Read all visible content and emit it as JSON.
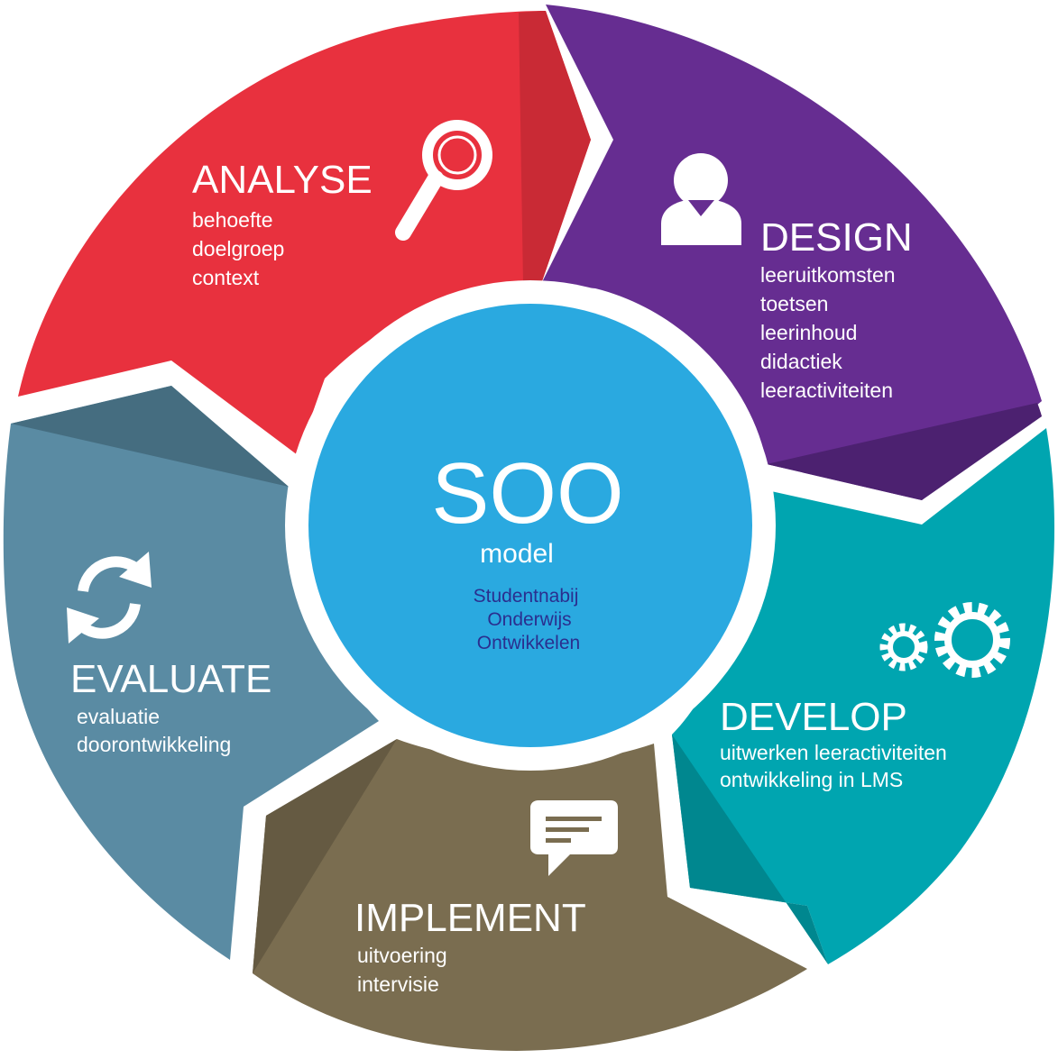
{
  "center": {
    "title": "SOO",
    "subtitle": "model",
    "lines": [
      "Studentnabij",
      "Onderwijs",
      "Ontwikkelen"
    ]
  },
  "phases": {
    "analyse": {
      "title": "ANALYSE",
      "items": [
        "behoefte",
        "doelgroep",
        "context"
      ],
      "icon": "magnifier-icon",
      "color": "#e8313e"
    },
    "design": {
      "title": "DESIGN",
      "items": [
        "leeruitkomsten",
        "toetsen",
        "leerinhoud",
        "didactiek",
        "leeractiviteiten"
      ],
      "icon": "person-icon",
      "color": "#662d91"
    },
    "develop": {
      "title": "DEVELOP",
      "items": [
        "uitwerken leeractiviteiten",
        "ontwikkeling in LMS"
      ],
      "icon": "gears-icon",
      "color": "#00a5b0"
    },
    "implement": {
      "title": "IMPLEMENT",
      "items": [
        "uitvoering",
        "intervisie"
      ],
      "icon": "chat-icon",
      "color": "#7a6d50"
    },
    "evaluate": {
      "title": "EVALUATE",
      "items": [
        "evaluatie",
        "doorontwikkeling"
      ],
      "icon": "refresh-icon",
      "color": "#5a8ba3"
    }
  },
  "colors": {
    "center": "#2aa9e0"
  }
}
